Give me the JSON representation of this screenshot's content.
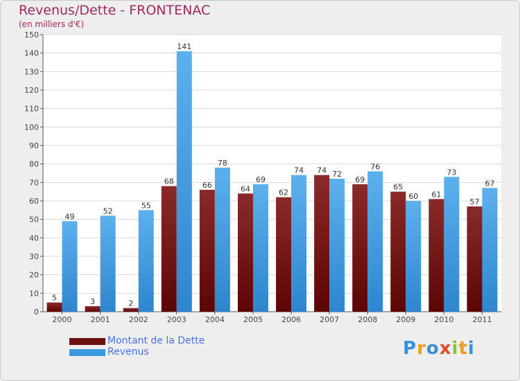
{
  "header": {
    "title": "Revenus/Dette - FRONTENAC",
    "subtitle": "(en milliers d'€)"
  },
  "chart_data": {
    "type": "bar",
    "title": "Revenus/Dette - FRONTENAC",
    "ylabel": "(en milliers d'€)",
    "xlabel": "",
    "ylim": [
      0,
      150
    ],
    "yticks": [
      0,
      10,
      20,
      30,
      40,
      50,
      60,
      70,
      80,
      90,
      100,
      110,
      120,
      130,
      140,
      150
    ],
    "grid": true,
    "categories": [
      "2000",
      "2001",
      "2002",
      "2003",
      "2004",
      "2005",
      "2006",
      "2007",
      "2008",
      "2009",
      "2010",
      "2011"
    ],
    "series": [
      {
        "name": "Montant de la Dette",
        "color": "#7a1a1a",
        "values": [
          5,
          3,
          2,
          68,
          66,
          64,
          62,
          74,
          69,
          65,
          61,
          57
        ]
      },
      {
        "name": "Revenus",
        "color": "#3a9be0",
        "values": [
          49,
          52,
          55,
          141,
          78,
          69,
          74,
          72,
          76,
          60,
          73,
          67
        ]
      }
    ],
    "legend_position": "bottom-left"
  },
  "legend": {
    "items": [
      {
        "label": "Montant de la Dette",
        "color": "#6b0f0f"
      },
      {
        "label": "Revenus",
        "color": "#3a9be0"
      }
    ]
  },
  "logo": {
    "letters": [
      "P",
      "r",
      "o",
      "x",
      "i",
      "t",
      "i"
    ],
    "colors": [
      "#3a8fd8",
      "#e8a020",
      "#3a8fd8",
      "#e84a2a",
      "#8ac23a",
      "#e8a020",
      "#3a8fd8"
    ]
  }
}
